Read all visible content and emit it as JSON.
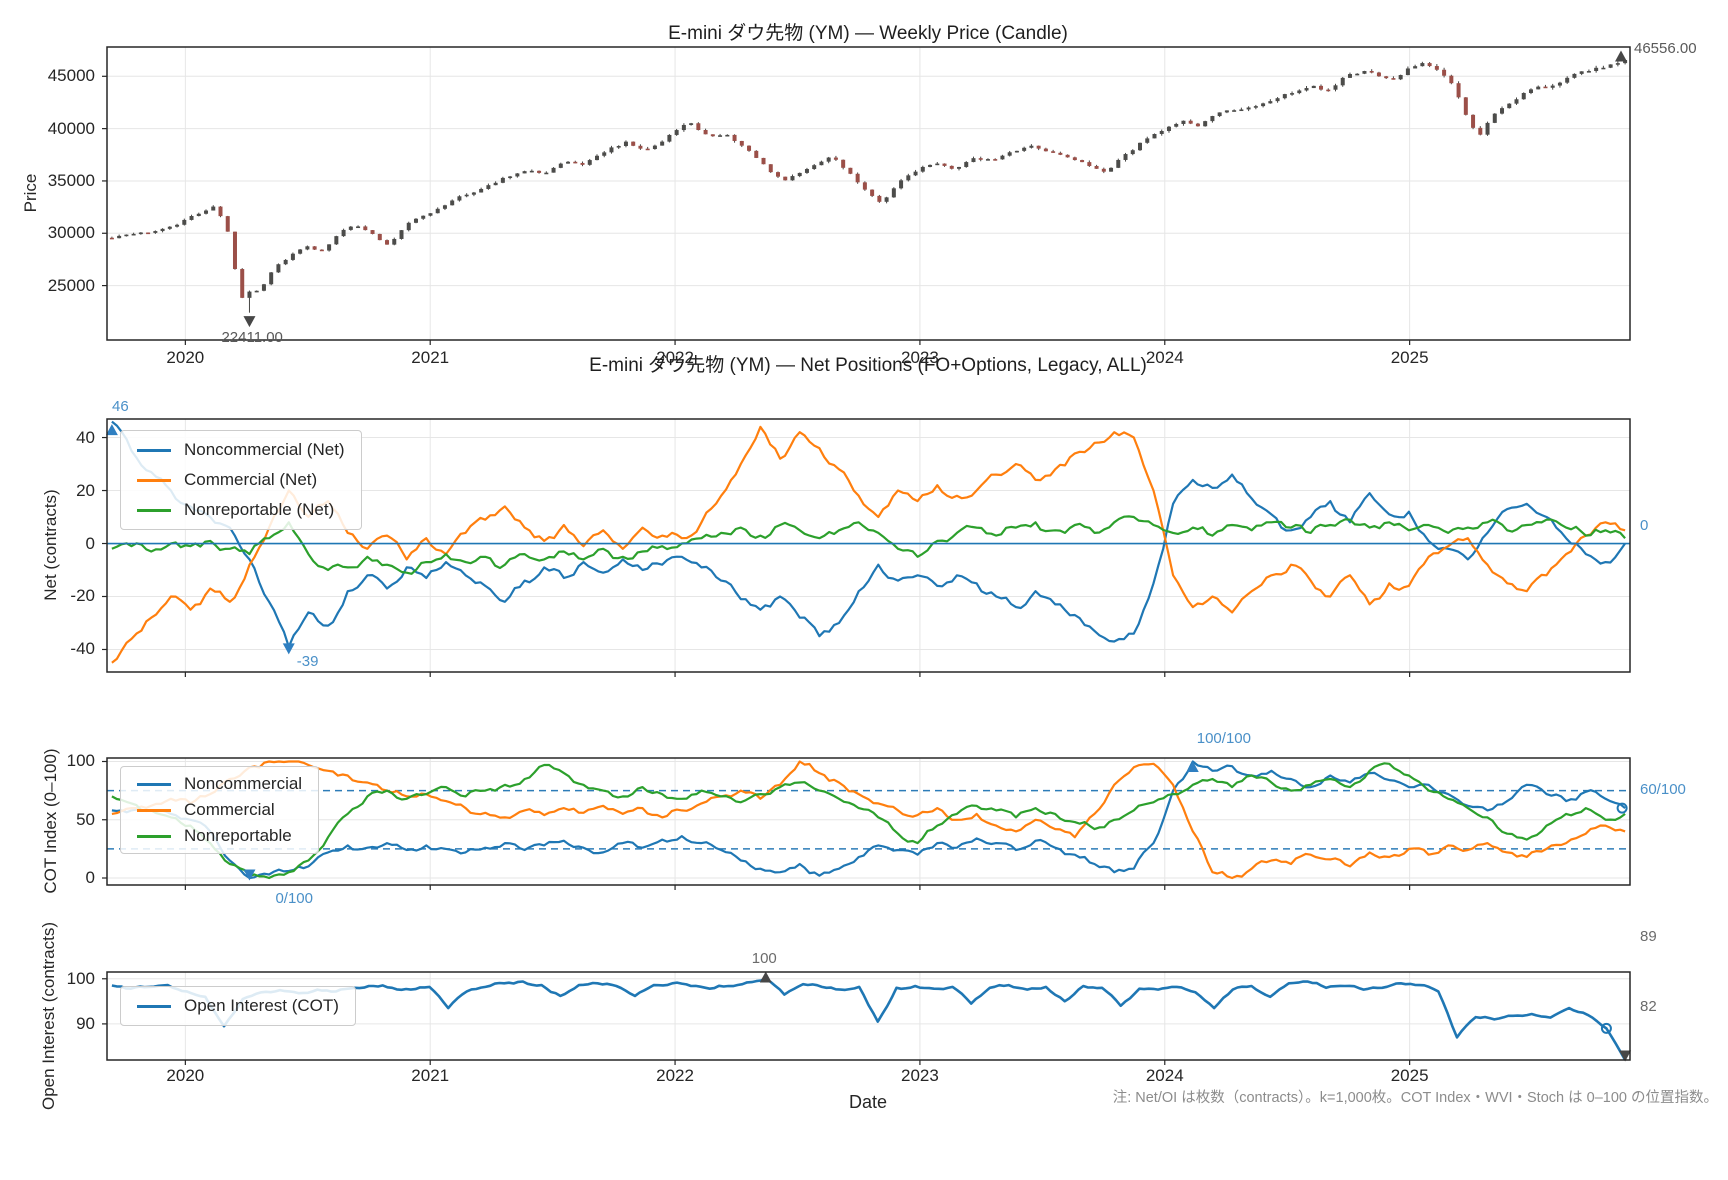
{
  "note": "注: Net/OI は枚数（contracts）。k=1,000枚。COT Index・WVI・Stoch は 0–100 の位置指数。",
  "colors": {
    "noncommercial": "#1f77b4",
    "commercial": "#ff7f0e",
    "nonreportable": "#2ca02c",
    "oi_line": "#1f77b4",
    "candle_up": "#4c4c4a",
    "candle_down": "#9b4f48",
    "wick": "#454543",
    "grid": "#e6e6e6",
    "frame": "#262626",
    "zero_line": "#1f77b4",
    "dashed_threshold": "#2d7cb8",
    "annotation_blue": "#4a90c8",
    "annotation_gray": "#6b6b6b",
    "annotation_dark": "#595959",
    "marker_dark": "#474747"
  },
  "chart_data": [
    {
      "type": "candlestick",
      "title": "E-mini ダウ先物 (YM) — Weekly Price (Candle)",
      "ylabel": "Price",
      "yticks": [
        25000,
        30000,
        35000,
        40000,
        45000
      ],
      "xticks": [
        "2020",
        "2021",
        "2022",
        "2023",
        "2024",
        "2025"
      ],
      "xlim": [
        2019.68,
        2025.9
      ],
      "ylim": [
        19800,
        47800
      ],
      "grid": true,
      "annotations": {
        "low": "22411.00",
        "latest": "46556.00"
      },
      "anchors": [
        [
          2019.7,
          29600
        ],
        [
          2019.85,
          30100
        ],
        [
          2019.95,
          30700
        ],
        [
          2020.05,
          31900
        ],
        [
          2020.12,
          32600
        ],
        [
          2020.17,
          30500
        ],
        [
          2020.21,
          25800
        ],
        [
          2020.24,
          23200
        ],
        [
          2020.27,
          24900
        ],
        [
          2020.3,
          24300
        ],
        [
          2020.36,
          26600
        ],
        [
          2020.44,
          28100
        ],
        [
          2020.5,
          28700
        ],
        [
          2020.56,
          28300
        ],
        [
          2020.64,
          30200
        ],
        [
          2020.7,
          30800
        ],
        [
          2020.76,
          30000
        ],
        [
          2020.83,
          28800
        ],
        [
          2020.9,
          30900
        ],
        [
          2020.98,
          31700
        ],
        [
          2021.1,
          33300
        ],
        [
          2021.2,
          34100
        ],
        [
          2021.3,
          35300
        ],
        [
          2021.4,
          36100
        ],
        [
          2021.46,
          35700
        ],
        [
          2021.55,
          36900
        ],
        [
          2021.62,
          36500
        ],
        [
          2021.72,
          37900
        ],
        [
          2021.8,
          38700
        ],
        [
          2021.86,
          38000
        ],
        [
          2021.92,
          38300
        ],
        [
          2022.0,
          39900
        ],
        [
          2022.06,
          40600
        ],
        [
          2022.14,
          39100
        ],
        [
          2022.2,
          39600
        ],
        [
          2022.28,
          38300
        ],
        [
          2022.36,
          36600
        ],
        [
          2022.44,
          34900
        ],
        [
          2022.5,
          35600
        ],
        [
          2022.58,
          36600
        ],
        [
          2022.64,
          37300
        ],
        [
          2022.72,
          35600
        ],
        [
          2022.8,
          33600
        ],
        [
          2022.84,
          32900
        ],
        [
          2022.92,
          35000
        ],
        [
          2022.98,
          35900
        ],
        [
          2023.06,
          36800
        ],
        [
          2023.14,
          36100
        ],
        [
          2023.22,
          37200
        ],
        [
          2023.3,
          36900
        ],
        [
          2023.38,
          37800
        ],
        [
          2023.46,
          38400
        ],
        [
          2023.52,
          37900
        ],
        [
          2023.6,
          37400
        ],
        [
          2023.68,
          36500
        ],
        [
          2023.76,
          35900
        ],
        [
          2023.84,
          37500
        ],
        [
          2023.92,
          39000
        ],
        [
          2024.0,
          39900
        ],
        [
          2024.08,
          40800
        ],
        [
          2024.14,
          40300
        ],
        [
          2024.22,
          41500
        ],
        [
          2024.3,
          41900
        ],
        [
          2024.38,
          42100
        ],
        [
          2024.46,
          43000
        ],
        [
          2024.52,
          43400
        ],
        [
          2024.6,
          44100
        ],
        [
          2024.66,
          43600
        ],
        [
          2024.74,
          45000
        ],
        [
          2024.82,
          45400
        ],
        [
          2024.88,
          45000
        ],
        [
          2024.94,
          44700
        ],
        [
          2025.0,
          45800
        ],
        [
          2025.06,
          46300
        ],
        [
          2025.12,
          45400
        ],
        [
          2025.18,
          44200
        ],
        [
          2025.24,
          40800
        ],
        [
          2025.28,
          39200
        ],
        [
          2025.34,
          41300
        ],
        [
          2025.42,
          42700
        ],
        [
          2025.5,
          43800
        ],
        [
          2025.58,
          44100
        ],
        [
          2025.66,
          45100
        ],
        [
          2025.72,
          45500
        ],
        [
          2025.78,
          45900
        ],
        [
          2025.83,
          46100
        ],
        [
          2025.88,
          46556
        ]
      ],
      "low_value": 22411,
      "last_close": 46556
    },
    {
      "type": "line",
      "title": "E-mini ダウ先物 (YM) — Net Positions (FO+Options, Legacy, ALL)",
      "ylabel": "Net (contracts)",
      "yticks": [
        -40,
        -20,
        0,
        20,
        40
      ],
      "ylim": [
        -48.5,
        47
      ],
      "zero_line": 0,
      "grid": true,
      "annotations": {
        "start": "46",
        "min": "-39",
        "latest": "0"
      },
      "series": [
        {
          "name": "Noncommercial (Net)",
          "color": "#1f77b4",
          "values": [
            46,
            35,
            27,
            20,
            14,
            10,
            6,
            -6,
            -22,
            -39,
            -26,
            -31,
            -18,
            -12,
            -17,
            -9,
            -13,
            -7,
            -12,
            -16,
            -22,
            -14,
            -9,
            -13,
            -7,
            -11,
            -6,
            -10,
            -8,
            -5,
            -9,
            -14,
            -21,
            -25,
            -20,
            -28,
            -35,
            -30,
            -18,
            -8,
            -14,
            -12,
            -16,
            -12,
            -15,
            -20,
            -24,
            -18,
            -23,
            -27,
            -33,
            -37,
            -34,
            -15,
            15,
            24,
            21,
            26,
            17,
            11,
            5,
            10,
            16,
            8,
            19,
            11,
            12,
            1,
            -2,
            -6,
            4,
            13,
            15,
            10,
            2,
            -4,
            -7,
            0
          ]
        },
        {
          "name": "Commercial (Net)",
          "color": "#ff7f0e",
          "values": [
            -45,
            -36,
            -28,
            -20,
            -25,
            -17,
            -22,
            -8,
            6,
            20,
            10,
            16,
            4,
            -2,
            3,
            -6,
            2,
            -4,
            4,
            9,
            14,
            6,
            1,
            7,
            -1,
            5,
            -2,
            6,
            3,
            2,
            8,
            18,
            30,
            44,
            32,
            42,
            36,
            28,
            18,
            10,
            20,
            16,
            22,
            18,
            20,
            26,
            30,
            24,
            28,
            34,
            38,
            42,
            40,
            20,
            -12,
            -24,
            -20,
            -26,
            -18,
            -12,
            -8,
            -14,
            -20,
            -12,
            -23,
            -15,
            -16,
            -5,
            -1,
            2,
            -8,
            -15,
            -18,
            -12,
            -4,
            3,
            8,
            5
          ]
        },
        {
          "name": "Nonreportable (Net)",
          "color": "#2ca02c",
          "values": [
            -2,
            -1,
            -3,
            0,
            -1,
            1,
            -2,
            -4,
            2,
            8,
            -4,
            -10,
            -9,
            -5,
            -8,
            -11,
            -7,
            -4,
            -7,
            -5,
            -8,
            -4,
            -6,
            -3,
            -6,
            -2,
            -5,
            -3,
            -1,
            0,
            2,
            4,
            6,
            3,
            7,
            5,
            2,
            5,
            8,
            4,
            -2,
            -5,
            1,
            4,
            6,
            3,
            6,
            8,
            5,
            7,
            4,
            8,
            10,
            7,
            4,
            6,
            3,
            7,
            5,
            8,
            6,
            4,
            7,
            9,
            6,
            8,
            5,
            7,
            4,
            6,
            8,
            5,
            7,
            9,
            6,
            3,
            5,
            2
          ]
        }
      ]
    },
    {
      "type": "line",
      "title": "",
      "ylabel": "COT Index (0–100)",
      "yticks": [
        0,
        50,
        100
      ],
      "ylim": [
        -6,
        103
      ],
      "dashed_levels": [
        25,
        75
      ],
      "grid": true,
      "annotations": {
        "max": "100/100",
        "min": "0/100",
        "latest": "60/100"
      },
      "series": [
        {
          "name": "Noncommercial",
          "color": "#1f77b4",
          "values": [
            58,
            58,
            58,
            55,
            50,
            40,
            15,
            0,
            3,
            6,
            10,
            22,
            28,
            26,
            30,
            24,
            28,
            25,
            22,
            26,
            30,
            24,
            28,
            32,
            26,
            22,
            30,
            26,
            33,
            36,
            30,
            24,
            15,
            8,
            5,
            12,
            2,
            8,
            18,
            28,
            24,
            20,
            30,
            26,
            34,
            30,
            24,
            32,
            26,
            20,
            12,
            5,
            8,
            30,
            75,
            100,
            92,
            96,
            88,
            92,
            85,
            78,
            88,
            82,
            90,
            84,
            78,
            80,
            72,
            62,
            58,
            66,
            80,
            72,
            66,
            74,
            68,
            60
          ]
        },
        {
          "name": "Commercial",
          "color": "#ff7f0e",
          "values": [
            55,
            60,
            62,
            68,
            64,
            72,
            85,
            95,
            100,
            100,
            97,
            92,
            88,
            82,
            75,
            70,
            72,
            66,
            60,
            56,
            52,
            58,
            54,
            60,
            56,
            62,
            55,
            60,
            52,
            58,
            64,
            70,
            75,
            68,
            80,
            100,
            90,
            82,
            72,
            64,
            58,
            54,
            60,
            50,
            55,
            45,
            40,
            50,
            42,
            35,
            55,
            80,
            95,
            98,
            80,
            40,
            5,
            0,
            8,
            15,
            12,
            20,
            16,
            10,
            22,
            18,
            25,
            20,
            28,
            24,
            30,
            22,
            18,
            25,
            30,
            38,
            45,
            40
          ]
        },
        {
          "name": "Nonreportable",
          "color": "#2ca02c",
          "values": [
            70,
            64,
            58,
            52,
            45,
            30,
            12,
            2,
            0,
            5,
            15,
            35,
            55,
            70,
            75,
            68,
            72,
            78,
            70,
            75,
            80,
            85,
            97,
            90,
            80,
            75,
            70,
            78,
            72,
            68,
            75,
            70,
            65,
            72,
            78,
            82,
            75,
            68,
            60,
            52,
            38,
            30,
            45,
            55,
            62,
            58,
            52,
            60,
            55,
            48,
            42,
            50,
            58,
            65,
            72,
            80,
            85,
            78,
            88,
            82,
            75,
            80,
            85,
            78,
            92,
            98,
            88,
            75,
            68,
            60,
            52,
            38,
            33,
            45,
            55,
            60,
            50,
            55
          ]
        }
      ]
    },
    {
      "type": "line",
      "title": "",
      "ylabel": "Open Interest (contracts)",
      "xlabel": "Date",
      "yticks": [
        90,
        100
      ],
      "xticks": [
        "2020",
        "2021",
        "2022",
        "2023",
        "2024",
        "2025"
      ],
      "ylim": [
        82,
        101.5
      ],
      "grid": true,
      "annotations": {
        "max": "100",
        "prev": "89",
        "latest": "82"
      },
      "series": [
        {
          "name": "Open Interest (COT)",
          "color": "#1f77b4",
          "values": [
            98.5,
            97.8,
            98.2,
            98.6,
            97.2,
            96,
            89.5,
            95.5,
            97,
            97.5,
            96.8,
            97.6,
            97.2,
            98,
            98.4,
            98,
            97.6,
            98.2,
            93.5,
            97.2,
            98.2,
            99,
            99.4,
            98.6,
            96.2,
            98.6,
            99,
            98.4,
            96.2,
            98.6,
            99,
            98.4,
            97.8,
            98.4,
            99.2,
            100,
            96.5,
            98.8,
            98.2,
            97.6,
            98.2,
            90.5,
            98,
            98.4,
            97.8,
            98.2,
            94.5,
            98,
            98.6,
            97.6,
            98.2,
            95,
            98.4,
            98,
            94,
            97.8,
            97.6,
            98.2,
            97,
            93.5,
            97.6,
            98.4,
            96,
            99,
            99.4,
            98,
            98.4,
            97.6,
            98,
            99,
            98.6,
            97.2,
            87,
            91.5,
            91,
            91.8,
            92.2,
            91.4,
            93.5,
            92,
            89,
            82
          ]
        }
      ]
    }
  ]
}
